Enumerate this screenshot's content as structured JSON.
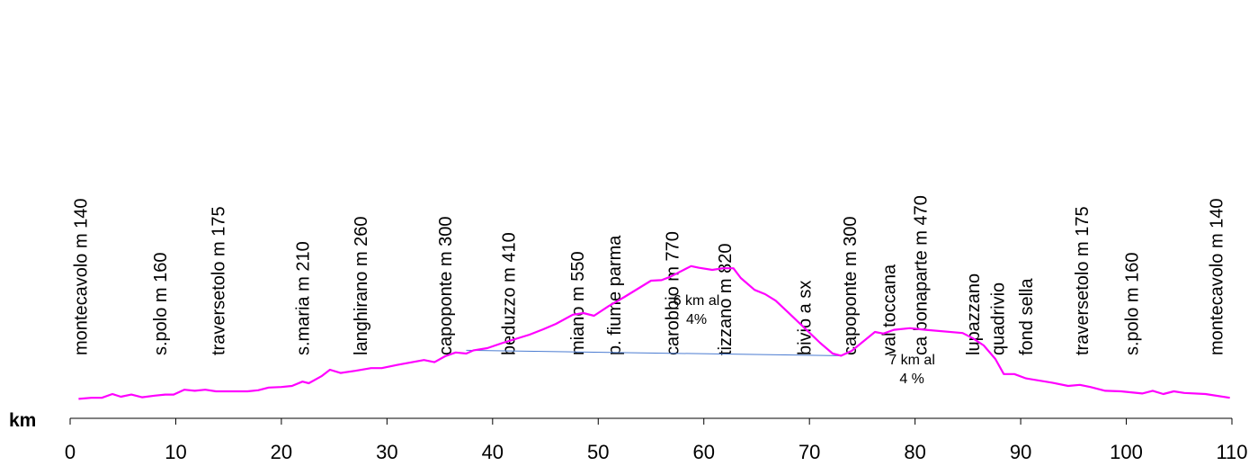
{
  "chart_data": {
    "type": "line",
    "xlabel": "km",
    "xlim": [
      0,
      110
    ],
    "xticks": [
      0,
      10,
      20,
      30,
      40,
      50,
      60,
      70,
      80,
      90,
      100,
      110
    ],
    "ylim": [
      100,
      900
    ],
    "grid": false,
    "legend": false,
    "series": [
      {
        "color": "#ff00ff",
        "points": [
          [
            0.8,
            136
          ],
          [
            2,
            138
          ],
          [
            3,
            138
          ],
          [
            4,
            145
          ],
          [
            4.8,
            140
          ],
          [
            5.8,
            144
          ],
          [
            6.8,
            139
          ],
          [
            8,
            142
          ],
          [
            9,
            144
          ],
          [
            9.8,
            144
          ],
          [
            10.8,
            153
          ],
          [
            11.8,
            151
          ],
          [
            12.8,
            153
          ],
          [
            13.8,
            150
          ],
          [
            15,
            150
          ],
          [
            16.8,
            150
          ],
          [
            17.8,
            152
          ],
          [
            18.8,
            157
          ],
          [
            20,
            158
          ],
          [
            21,
            160
          ],
          [
            22,
            168
          ],
          [
            22.6,
            165
          ],
          [
            23.8,
            178
          ],
          [
            24.6,
            190
          ],
          [
            25.6,
            184
          ],
          [
            27,
            188
          ],
          [
            28.5,
            193
          ],
          [
            29.5,
            193
          ],
          [
            31,
            199
          ],
          [
            33.5,
            208
          ],
          [
            34.5,
            204
          ],
          [
            35.5,
            215
          ],
          [
            36.5,
            222
          ],
          [
            37.5,
            220
          ],
          [
            38.2,
            226
          ],
          [
            39.5,
            230
          ],
          [
            41,
            240
          ],
          [
            43.5,
            255
          ],
          [
            44.8,
            265
          ],
          [
            46,
            275
          ],
          [
            47.6,
            292
          ],
          [
            48.6,
            295
          ],
          [
            49.6,
            290
          ],
          [
            51,
            308
          ],
          [
            52.5,
            325
          ],
          [
            55,
            355
          ],
          [
            56,
            356
          ],
          [
            56.8,
            362
          ],
          [
            58.8,
            382
          ],
          [
            59.5,
            379
          ],
          [
            60.8,
            375
          ],
          [
            61.8,
            378
          ],
          [
            62.8,
            378
          ],
          [
            63.5,
            360
          ],
          [
            64.8,
            338
          ],
          [
            65.8,
            330
          ],
          [
            66.8,
            318
          ],
          [
            68,
            296
          ],
          [
            69.5,
            268
          ],
          [
            71,
            240
          ],
          [
            72.2,
            220
          ],
          [
            73,
            216
          ],
          [
            74,
            225
          ],
          [
            76.2,
            260
          ],
          [
            77,
            257
          ],
          [
            78,
            264
          ],
          [
            79.5,
            267
          ],
          [
            81,
            264
          ],
          [
            84.5,
            258
          ],
          [
            85.5,
            248
          ],
          [
            86.5,
            235
          ],
          [
            87.6,
            210
          ],
          [
            88.4,
            182
          ],
          [
            89.4,
            182
          ],
          [
            90.5,
            174
          ],
          [
            93,
            166
          ],
          [
            94.5,
            160
          ],
          [
            95.6,
            162
          ],
          [
            96.6,
            158
          ],
          [
            98,
            151
          ],
          [
            99.5,
            150
          ],
          [
            101.5,
            146
          ],
          [
            102.5,
            151
          ],
          [
            103.5,
            145
          ],
          [
            104.5,
            150
          ],
          [
            105.5,
            147
          ],
          [
            107.5,
            145
          ],
          [
            109.8,
            138
          ]
        ]
      }
    ],
    "reference_line": {
      "color": "#4a7bd1",
      "from": [
        37.5,
        226
      ],
      "to": [
        72.8,
        216
      ]
    },
    "place_labels": [
      {
        "text": "montecavolo m 140",
        "km": 1
      },
      {
        "text": "s.polo  m 160",
        "km": 8.5
      },
      {
        "text": "traversetolo  m 175",
        "km": 14
      },
      {
        "text": "s.maria m 210",
        "km": 22
      },
      {
        "text": "langhirano  m 260",
        "km": 27.5
      },
      {
        "text": "capoponte m 300",
        "km": 35.5
      },
      {
        "text": "beduzzo m 410",
        "km": 41.5
      },
      {
        "text": "miano m 550",
        "km": 48
      },
      {
        "text": "p. fiume parma",
        "km": 51.5
      },
      {
        "text": "carobbio m 770",
        "km": 57
      },
      {
        "text": "tizzano m 820",
        "km": 62
      },
      {
        "text": "bivio a sx",
        "km": 69.5
      },
      {
        "text": "capoponte m 300",
        "km": 73.8
      },
      {
        "text": "val toccana",
        "km": 77.5
      },
      {
        "text": "ca bonaparte m 470",
        "km": 80.5
      },
      {
        "text": "lupazzano",
        "km": 85.5
      },
      {
        "text": "quadrivio",
        "km": 87.8
      },
      {
        "text": "fond sella",
        "km": 90.5
      },
      {
        "text": "traversetolo m 175",
        "km": 95.8
      },
      {
        "text": "s.polo m 160",
        "km": 100.5
      },
      {
        "text": "montecavolo m 140",
        "km": 108.5
      }
    ],
    "annotations": [
      {
        "lines": [
          "6 km al",
          "4%"
        ],
        "km": 59.3,
        "elev": 310
      },
      {
        "lines": [
          "7 km al",
          "4 %"
        ],
        "km": 79.7,
        "elev": 200
      }
    ]
  }
}
